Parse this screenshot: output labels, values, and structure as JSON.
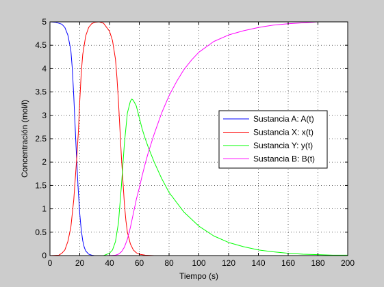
{
  "chart_data": {
    "type": "line",
    "title": "",
    "xlabel": "Tiempo (s)",
    "ylabel": "Concentración (mol/l)",
    "xlim": [
      0,
      200
    ],
    "ylim": [
      0,
      5
    ],
    "x_ticks": [
      0,
      20,
      40,
      60,
      80,
      100,
      120,
      140,
      160,
      180,
      200
    ],
    "y_ticks": [
      0,
      0.5,
      1,
      1.5,
      2,
      2.5,
      3,
      3.5,
      4,
      4.5,
      5
    ],
    "x_tick_labels": [
      "0",
      "20",
      "40",
      "60",
      "80",
      "100",
      "120",
      "140",
      "160",
      "180",
      "200"
    ],
    "y_tick_labels": [
      "0",
      "0.5",
      "1",
      "1.5",
      "2",
      "2.5",
      "3",
      "3.5",
      "4",
      "4.5",
      "5"
    ],
    "grid": true,
    "legend_position": "right-center",
    "series": [
      {
        "name": "Sustancia A: A(t)",
        "color": "#0000ff",
        "x": [
          0,
          4,
          8,
          10,
          12,
          14,
          15,
          16,
          17,
          18,
          19,
          20,
          21,
          22,
          23,
          24,
          26,
          28,
          30,
          34,
          40,
          60,
          100,
          150,
          200
        ],
        "y": [
          5,
          4.99,
          4.95,
          4.88,
          4.72,
          4.4,
          4.0,
          3.4,
          2.7,
          2.0,
          1.4,
          0.9,
          0.55,
          0.32,
          0.18,
          0.1,
          0.03,
          0.01,
          0,
          0,
          0,
          0,
          0,
          0,
          0
        ]
      },
      {
        "name": "Sustancia X: x(t)",
        "color": "#ff0000",
        "x": [
          0,
          6,
          8,
          10,
          12,
          14,
          16,
          18,
          19,
          20,
          21,
          22,
          24,
          26,
          28,
          30,
          33,
          36,
          40,
          42,
          44,
          45,
          46,
          47,
          48,
          49,
          50,
          51,
          52,
          54,
          56,
          58,
          60,
          64,
          70,
          80,
          200
        ],
        "y": [
          0,
          0.01,
          0.05,
          0.12,
          0.3,
          0.6,
          1.2,
          2.1,
          2.6,
          3.3,
          3.9,
          4.3,
          4.7,
          4.88,
          4.96,
          4.99,
          5.0,
          4.97,
          4.8,
          4.6,
          4.2,
          3.8,
          3.3,
          2.7,
          2.1,
          1.6,
          1.1,
          0.75,
          0.5,
          0.25,
          0.12,
          0.06,
          0.03,
          0.01,
          0,
          0,
          0
        ]
      },
      {
        "name": "Sustancia Y: y(t)",
        "color": "#00ff00",
        "x": [
          0,
          36,
          40,
          42,
          44,
          46,
          48,
          50,
          52,
          54,
          55,
          56,
          58,
          60,
          62,
          64,
          66,
          70,
          75,
          80,
          90,
          100,
          110,
          120,
          130,
          140,
          150,
          160,
          170,
          180,
          190,
          200
        ],
        "y": [
          0,
          0,
          0.05,
          0.12,
          0.3,
          0.7,
          1.5,
          2.4,
          3.05,
          3.3,
          3.35,
          3.32,
          3.2,
          2.95,
          2.7,
          2.5,
          2.32,
          2.0,
          1.65,
          1.35,
          0.93,
          0.63,
          0.42,
          0.28,
          0.19,
          0.12,
          0.08,
          0.05,
          0.03,
          0.02,
          0.01,
          0.01
        ]
      },
      {
        "name": "Sustancia B: B(t)",
        "color": "#ff00ff",
        "x": [
          0,
          40,
          44,
          46,
          48,
          50,
          52,
          54,
          56,
          58,
          60,
          62,
          64,
          66,
          68,
          70,
          75,
          80,
          85,
          90,
          95,
          100,
          110,
          120,
          130,
          140,
          150,
          160,
          170,
          180
        ],
        "y": [
          0,
          0,
          0.01,
          0.03,
          0.08,
          0.18,
          0.35,
          0.6,
          0.9,
          1.2,
          1.45,
          1.72,
          1.97,
          2.2,
          2.4,
          2.6,
          3.05,
          3.42,
          3.72,
          3.98,
          4.18,
          4.35,
          4.58,
          4.72,
          4.81,
          4.88,
          4.93,
          4.96,
          4.98,
          5.0
        ]
      }
    ]
  }
}
